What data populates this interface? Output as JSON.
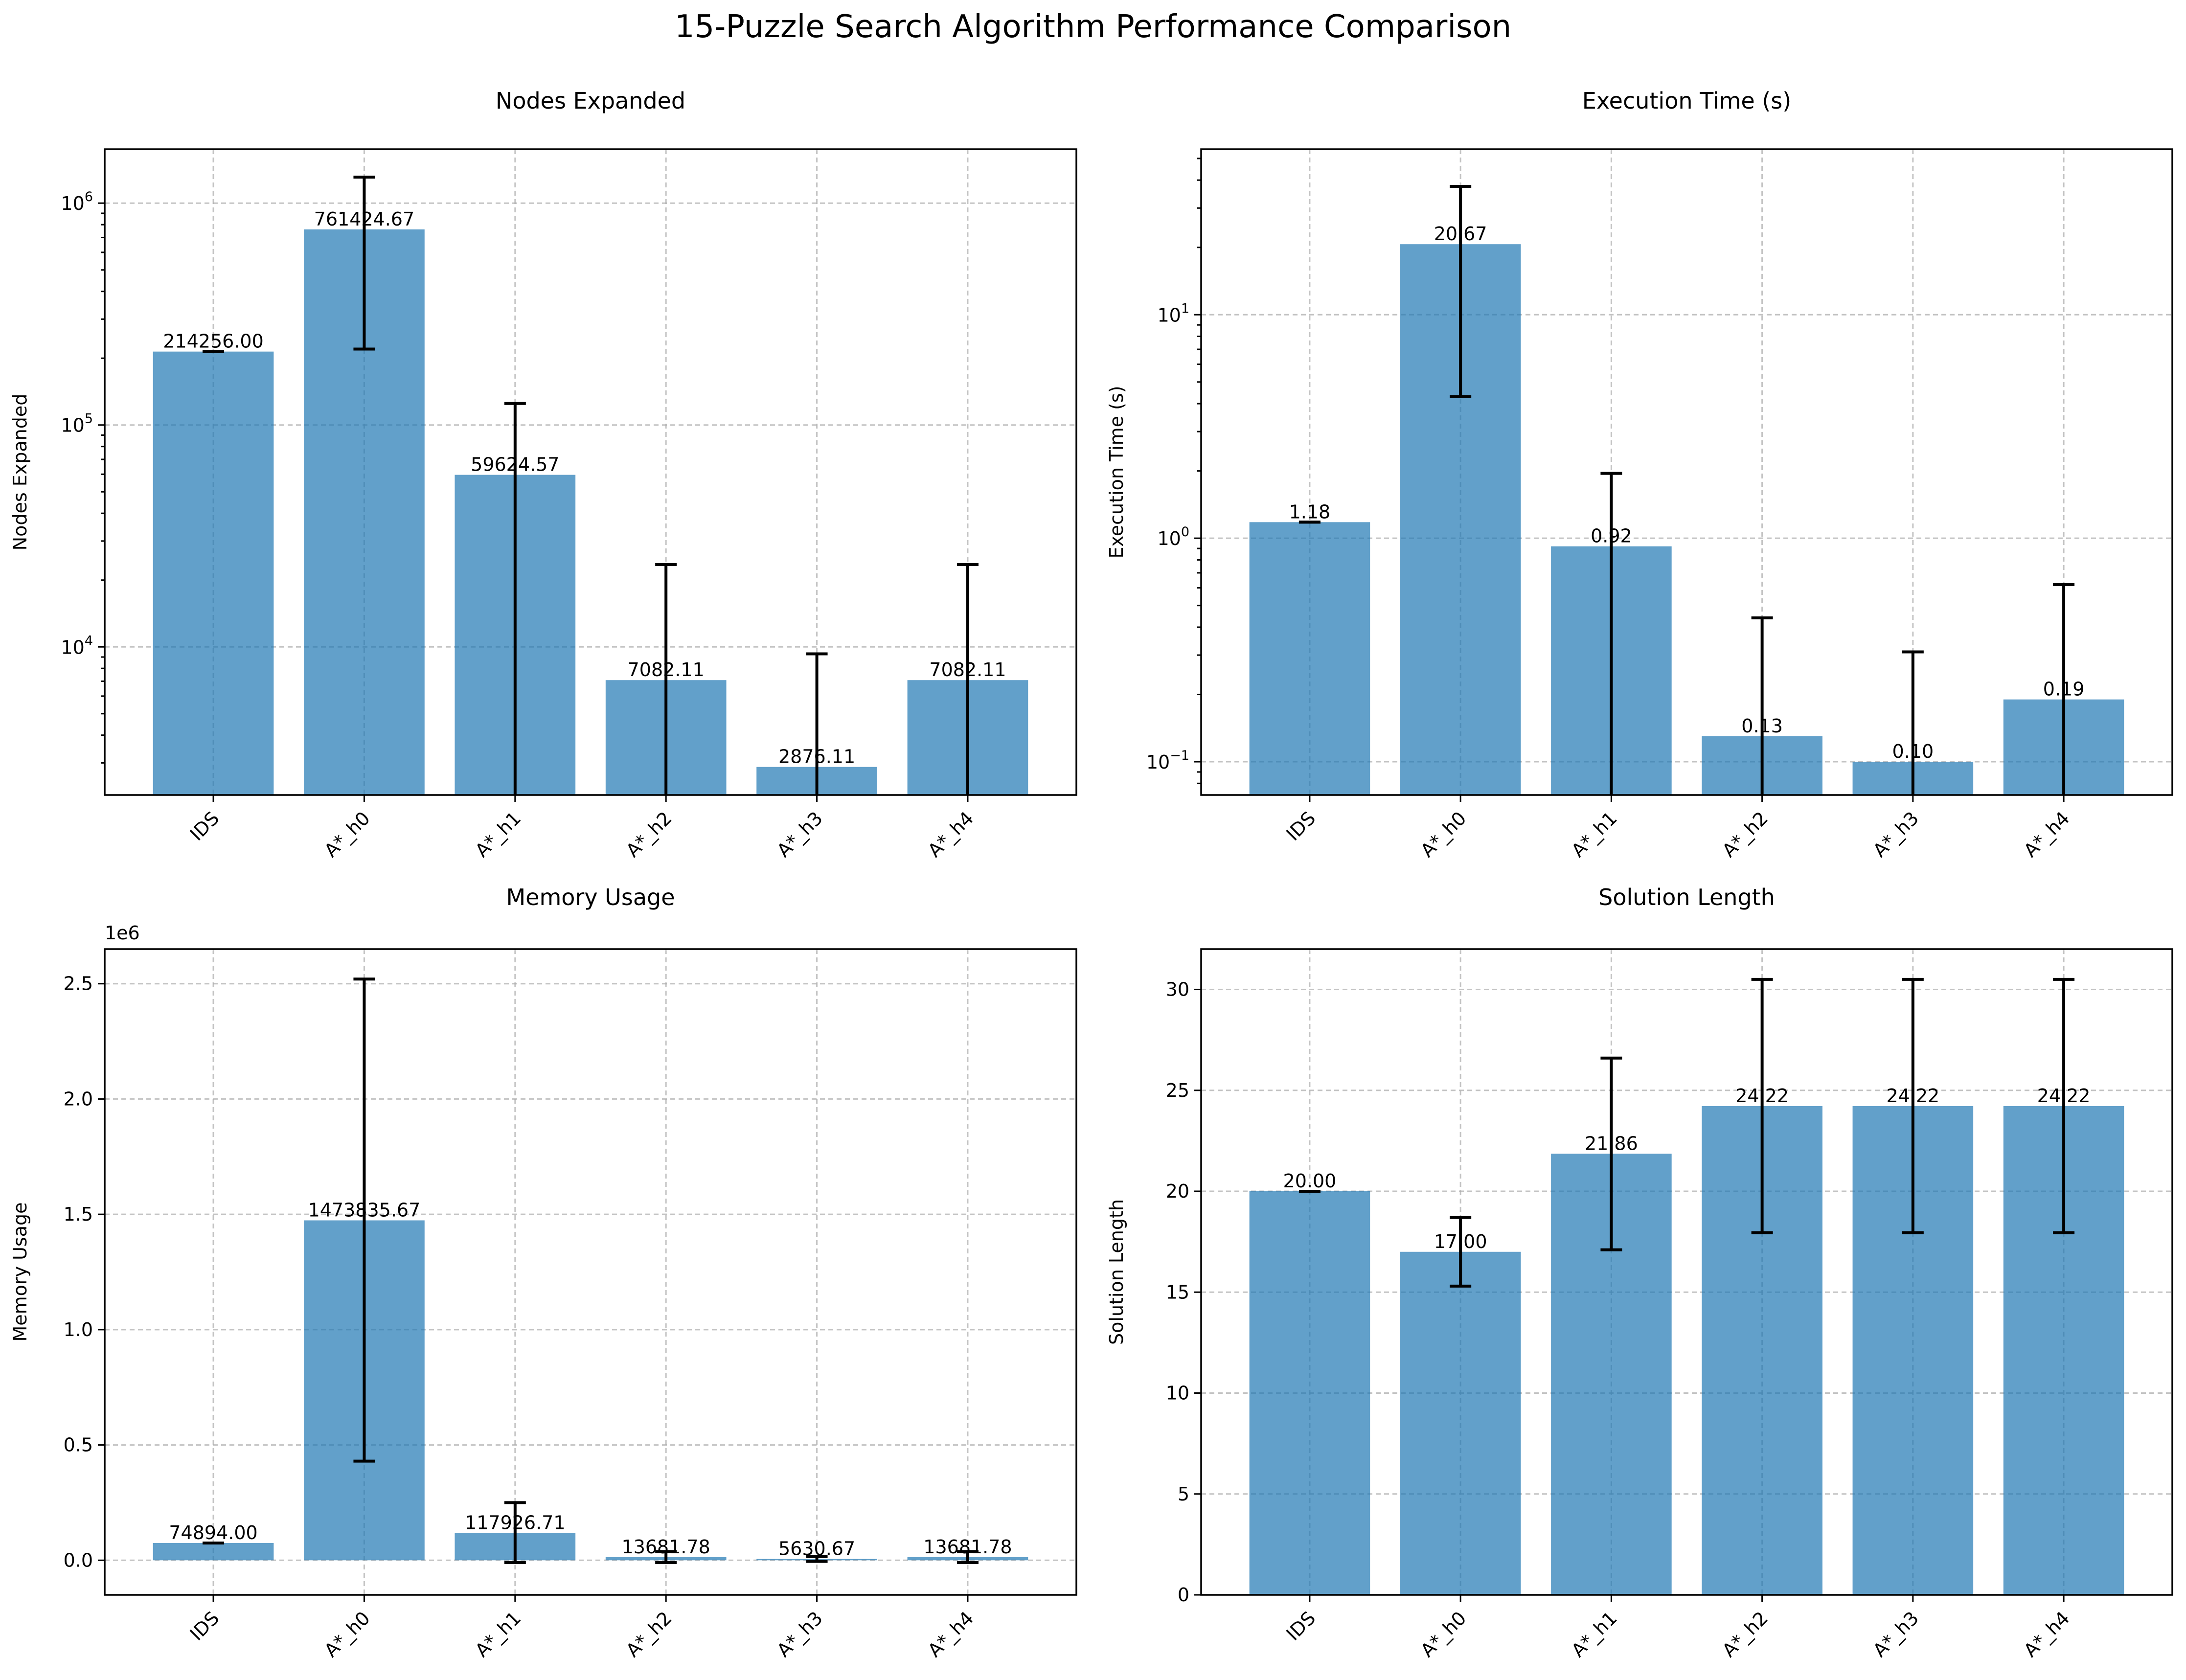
{
  "suptitle": "15-Puzzle Search Algorithm Performance Comparison",
  "bar_color": "#1f77b4",
  "chart_data": [
    {
      "type": "bar",
      "title": "Nodes Expanded",
      "xlabel": "",
      "ylabel": "Nodes Expanded",
      "yscale": "log",
      "ylim": [
        2150,
        1750000
      ],
      "yticks": [
        10000,
        100000,
        1000000
      ],
      "ytick_labels": [
        [
          "10",
          "4"
        ],
        [
          "10",
          "5"
        ],
        [
          "10",
          "6"
        ]
      ],
      "grid": true,
      "categories": [
        "IDS",
        "A*_h0",
        "A*_h1",
        "A*_h2",
        "A*_h3",
        "A*_h4"
      ],
      "values": [
        214256.0,
        761424.67,
        59624.57,
        7082.11,
        2876.11,
        7082.11
      ],
      "errors": [
        [
          214256.0,
          214256.0
        ],
        [
          220000,
          1310000
        ],
        [
          1000,
          125000
        ],
        [
          1000,
          23500
        ],
        [
          1000,
          9300
        ],
        [
          1000,
          23500
        ]
      ],
      "data_labels": [
        "214256.00",
        "761424.67",
        "59624.57",
        "7082.11",
        "2876.11",
        "7082.11"
      ]
    },
    {
      "type": "bar",
      "title": "Execution Time (s)",
      "xlabel": "",
      "ylabel": "Execution Time (s)",
      "yscale": "log",
      "ylim": [
        0.071,
        55
      ],
      "yticks": [
        0.1,
        1,
        10
      ],
      "ytick_labels": [
        [
          "10",
          "−1"
        ],
        [
          "10",
          "0"
        ],
        [
          "10",
          "1"
        ]
      ],
      "grid": true,
      "categories": [
        "IDS",
        "A*_h0",
        "A*_h1",
        "A*_h2",
        "A*_h3",
        "A*_h4"
      ],
      "values": [
        1.18,
        20.67,
        0.92,
        0.13,
        0.1,
        0.19
      ],
      "errors": [
        [
          1.18,
          1.18
        ],
        [
          4.3,
          37.5
        ],
        [
          0.01,
          1.95
        ],
        [
          0.01,
          0.44
        ],
        [
          0.01,
          0.31
        ],
        [
          0.01,
          0.62
        ]
      ],
      "data_labels": [
        "1.18",
        "20.67",
        "0.92",
        "0.13",
        "0.10",
        "0.19"
      ]
    },
    {
      "type": "bar",
      "title": "Memory Usage",
      "xlabel": "",
      "ylabel": "Memory Usage",
      "offset_text": "1e6",
      "yscale": "linear",
      "ylim": [
        -0.15,
        2.65
      ],
      "yticks": [
        0.0,
        0.5,
        1.0,
        1.5,
        2.0,
        2.5
      ],
      "ytick_labels": [
        "0.0",
        "0.5",
        "1.0",
        "1.5",
        "2.0",
        "2.5"
      ],
      "grid": true,
      "categories": [
        "IDS",
        "A*_h0",
        "A*_h1",
        "A*_h2",
        "A*_h3",
        "A*_h4"
      ],
      "values": [
        0.074894,
        1.47383567,
        0.11792671,
        0.01368178,
        0.00563067,
        0.01368178
      ],
      "errors": [
        [
          0.074894,
          0.074894
        ],
        [
          0.43,
          2.52
        ],
        [
          -0.01,
          0.25
        ],
        [
          -0.01,
          0.038
        ],
        [
          -0.005,
          0.016
        ],
        [
          -0.01,
          0.038
        ]
      ],
      "data_labels": [
        "74894.00",
        "1473835.67",
        "117926.71",
        "13681.78",
        "5630.67",
        "13681.78"
      ]
    },
    {
      "type": "bar",
      "title": "Solution Length",
      "xlabel": "",
      "ylabel": "Solution Length",
      "yscale": "linear",
      "ylim": [
        0,
        32
      ],
      "yticks": [
        0,
        5,
        10,
        15,
        20,
        25,
        30
      ],
      "ytick_labels": [
        "0",
        "5",
        "10",
        "15",
        "20",
        "25",
        "30"
      ],
      "grid": true,
      "categories": [
        "IDS",
        "A*_h0",
        "A*_h1",
        "A*_h2",
        "A*_h3",
        "A*_h4"
      ],
      "values": [
        20.0,
        17.0,
        21.86,
        24.22,
        24.22,
        24.22
      ],
      "errors": [
        [
          20.0,
          20.0
        ],
        [
          15.3,
          18.7
        ],
        [
          17.1,
          26.6
        ],
        [
          17.95,
          30.5
        ],
        [
          17.95,
          30.5
        ],
        [
          17.95,
          30.5
        ]
      ],
      "data_labels": [
        "20.00",
        "17.00",
        "21.86",
        "24.22",
        "24.22",
        "24.22"
      ]
    }
  ]
}
